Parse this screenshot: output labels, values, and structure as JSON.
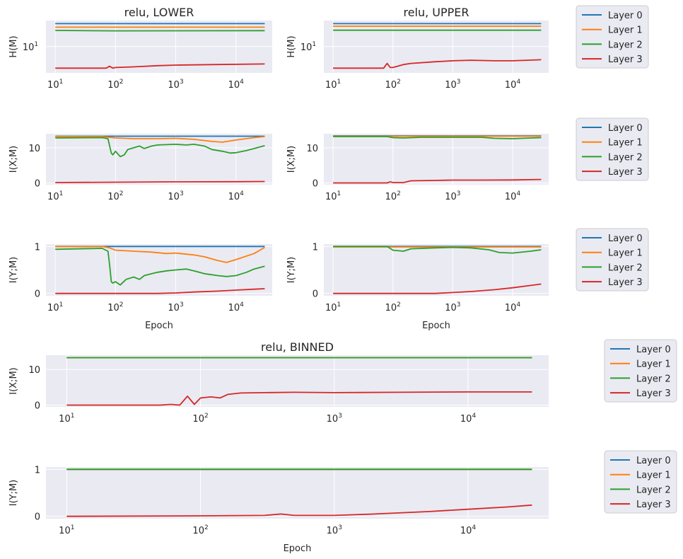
{
  "series_colors": {
    "Layer 0": "#1f77b4",
    "Layer 1": "#ff7f0e",
    "Layer 2": "#2ca02c",
    "Layer 3": "#d62728"
  },
  "legend_labels": [
    "Layer 0",
    "Layer 1",
    "Layer 2",
    "Layer 3"
  ],
  "chart_data": [
    {
      "id": "lower-h",
      "type": "line",
      "title": "relu, LOWER",
      "xlabel": "",
      "ylabel": "H(M)",
      "xscale": "log",
      "yscale": "log",
      "xlim": [
        7,
        40000
      ],
      "ylim": [
        4.5,
        22
      ],
      "xticks": [
        10,
        100,
        1000,
        10000
      ],
      "yticks": [
        10
      ],
      "legend": "right",
      "series": [
        {
          "name": "Layer 0",
          "x": [
            10,
            30000
          ],
          "y": [
            20,
            20
          ]
        },
        {
          "name": "Layer 1",
          "x": [
            10,
            30000
          ],
          "y": [
            18,
            18
          ]
        },
        {
          "name": "Layer 2",
          "x": [
            10,
            100,
            30000
          ],
          "y": [
            16.3,
            16.1,
            16.2
          ]
        },
        {
          "name": "Layer 3",
          "x": [
            10,
            70,
            80,
            90,
            100,
            200,
            500,
            1000,
            5000,
            30000
          ],
          "y": [
            5.2,
            5.2,
            5.5,
            5.2,
            5.3,
            5.4,
            5.6,
            5.7,
            5.8,
            5.9
          ]
        }
      ]
    },
    {
      "id": "upper-h",
      "type": "line",
      "title": "relu, UPPER",
      "xlabel": "",
      "ylabel": "H(M)",
      "xscale": "log",
      "yscale": "log",
      "xlim": [
        7,
        40000
      ],
      "ylim": [
        4.5,
        22
      ],
      "xticks": [
        10,
        100,
        1000,
        10000
      ],
      "yticks": [
        10
      ],
      "legend": "right",
      "series": [
        {
          "name": "Layer 0",
          "x": [
            10,
            30000
          ],
          "y": [
            20,
            20
          ]
        },
        {
          "name": "Layer 1",
          "x": [
            10,
            30000
          ],
          "y": [
            18.5,
            18.5
          ]
        },
        {
          "name": "Layer 2",
          "x": [
            10,
            30000
          ],
          "y": [
            16.4,
            16.4
          ]
        },
        {
          "name": "Layer 3",
          "x": [
            10,
            70,
            80,
            90,
            100,
            150,
            200,
            500,
            1000,
            2000,
            5000,
            10000,
            30000
          ],
          "y": [
            5.2,
            5.2,
            6.0,
            5.3,
            5.3,
            5.8,
            6.0,
            6.3,
            6.5,
            6.6,
            6.5,
            6.5,
            6.7
          ]
        }
      ]
    },
    {
      "id": "lower-ixm",
      "type": "line",
      "title": "",
      "xlabel": "",
      "ylabel": "I(X;M)",
      "xscale": "log",
      "yscale": "linear",
      "xlim": [
        7,
        40000
      ],
      "ylim": [
        -0.5,
        14
      ],
      "xticks": [
        10,
        100,
        1000,
        10000
      ],
      "yticks": [
        0,
        10
      ],
      "legend": "right",
      "series": [
        {
          "name": "Layer 0",
          "x": [
            10,
            30000
          ],
          "y": [
            13.3,
            13.3
          ]
        },
        {
          "name": "Layer 1",
          "x": [
            10,
            60,
            100,
            200,
            500,
            1000,
            2000,
            4000,
            6000,
            10000,
            20000,
            30000
          ],
          "y": [
            13.2,
            13.2,
            12.8,
            12.6,
            12.6,
            12.7,
            12.4,
            11.8,
            11.6,
            12.2,
            12.9,
            13.2
          ]
        },
        {
          "name": "Layer 2",
          "x": [
            10,
            60,
            75,
            80,
            85,
            90,
            100,
            120,
            140,
            160,
            200,
            250,
            300,
            400,
            500,
            700,
            1000,
            1500,
            2000,
            3000,
            4000,
            6000,
            8000,
            10000,
            15000,
            20000,
            30000
          ],
          "y": [
            12.8,
            12.9,
            12.6,
            10.5,
            8.5,
            8.0,
            9.0,
            7.5,
            8.0,
            9.5,
            10.0,
            10.5,
            9.8,
            10.5,
            10.8,
            10.9,
            11.0,
            10.8,
            11.0,
            10.5,
            9.5,
            9.0,
            8.5,
            8.6,
            9.2,
            9.8,
            10.6
          ]
        },
        {
          "name": "Layer 3",
          "x": [
            10,
            100,
            1000,
            10000,
            30000
          ],
          "y": [
            0.1,
            0.2,
            0.3,
            0.35,
            0.4
          ]
        }
      ]
    },
    {
      "id": "upper-ixm",
      "type": "line",
      "title": "",
      "xlabel": "",
      "ylabel": "I(X;M)",
      "xscale": "log",
      "yscale": "linear",
      "xlim": [
        7,
        40000
      ],
      "ylim": [
        -0.5,
        14
      ],
      "xticks": [
        10,
        100,
        1000,
        10000
      ],
      "yticks": [
        0,
        10
      ],
      "legend": "right",
      "series": [
        {
          "name": "Layer 0",
          "x": [
            10,
            30000
          ],
          "y": [
            13.4,
            13.4
          ]
        },
        {
          "name": "Layer 1",
          "x": [
            10,
            30000
          ],
          "y": [
            13.3,
            13.3
          ]
        },
        {
          "name": "Layer 2",
          "x": [
            10,
            80,
            100,
            150,
            300,
            1000,
            3000,
            5000,
            10000,
            20000,
            30000
          ],
          "y": [
            13.2,
            13.2,
            12.9,
            12.8,
            13.0,
            13.0,
            13.0,
            12.7,
            12.6,
            12.8,
            12.9
          ]
        },
        {
          "name": "Layer 3",
          "x": [
            10,
            80,
            90,
            100,
            150,
            200,
            500,
            1000,
            3000,
            10000,
            30000
          ],
          "y": [
            0,
            0,
            0.3,
            0.1,
            0.1,
            0.6,
            0.7,
            0.8,
            0.8,
            0.85,
            1.0
          ]
        }
      ]
    },
    {
      "id": "lower-iym",
      "type": "line",
      "title": "",
      "xlabel": "Epoch",
      "ylabel": "I(Y;M)",
      "xscale": "log",
      "yscale": "linear",
      "xlim": [
        7,
        40000
      ],
      "ylim": [
        -0.05,
        1.05
      ],
      "xticks": [
        10,
        100,
        1000,
        10000
      ],
      "yticks": [
        0,
        1
      ],
      "legend": "right",
      "series": [
        {
          "name": "Layer 0",
          "x": [
            10,
            30000
          ],
          "y": [
            1.0,
            1.0
          ]
        },
        {
          "name": "Layer 1",
          "x": [
            10,
            60,
            80,
            100,
            200,
            400,
            700,
            1000,
            2000,
            3000,
            5000,
            7000,
            10000,
            20000,
            30000
          ],
          "y": [
            1.0,
            1.0,
            0.97,
            0.92,
            0.9,
            0.88,
            0.85,
            0.86,
            0.82,
            0.78,
            0.7,
            0.66,
            0.72,
            0.85,
            0.98
          ]
        },
        {
          "name": "Layer 2",
          "x": [
            10,
            60,
            75,
            80,
            85,
            90,
            100,
            120,
            150,
            200,
            250,
            300,
            400,
            500,
            700,
            1000,
            1500,
            2000,
            3000,
            5000,
            7000,
            10000,
            15000,
            20000,
            30000
          ],
          "y": [
            0.94,
            0.96,
            0.9,
            0.6,
            0.25,
            0.22,
            0.25,
            0.18,
            0.3,
            0.35,
            0.3,
            0.38,
            0.42,
            0.45,
            0.48,
            0.5,
            0.52,
            0.48,
            0.42,
            0.38,
            0.36,
            0.38,
            0.45,
            0.52,
            0.58
          ]
        },
        {
          "name": "Layer 3",
          "x": [
            10,
            500,
            1000,
            2000,
            5000,
            10000,
            20000,
            30000
          ],
          "y": [
            0.0,
            0.0,
            0.01,
            0.03,
            0.05,
            0.07,
            0.09,
            0.1
          ]
        }
      ]
    },
    {
      "id": "upper-iym",
      "type": "line",
      "title": "",
      "xlabel": "Epoch",
      "ylabel": "I(Y;M)",
      "xscale": "log",
      "yscale": "linear",
      "xlim": [
        7,
        40000
      ],
      "ylim": [
        -0.05,
        1.05
      ],
      "xticks": [
        10,
        100,
        1000,
        10000
      ],
      "yticks": [
        0,
        1
      ],
      "legend": "right",
      "series": [
        {
          "name": "Layer 0",
          "x": [
            10,
            30000
          ],
          "y": [
            1.0,
            1.0
          ]
        },
        {
          "name": "Layer 1",
          "x": [
            10,
            30000
          ],
          "y": [
            0.99,
            0.99
          ]
        },
        {
          "name": "Layer 2",
          "x": [
            10,
            80,
            100,
            150,
            200,
            500,
            1000,
            2000,
            4000,
            6000,
            10000,
            20000,
            30000
          ],
          "y": [
            1.0,
            1.0,
            0.92,
            0.9,
            0.95,
            0.97,
            0.98,
            0.97,
            0.93,
            0.87,
            0.86,
            0.9,
            0.93
          ]
        },
        {
          "name": "Layer 3",
          "x": [
            10,
            500,
            1000,
            2000,
            5000,
            10000,
            20000,
            30000
          ],
          "y": [
            0.0,
            0.0,
            0.02,
            0.04,
            0.08,
            0.12,
            0.17,
            0.2
          ]
        }
      ]
    },
    {
      "id": "binned-ixm",
      "type": "line",
      "title": "relu, BINNED",
      "xlabel": "",
      "ylabel": "I(X;M)",
      "xscale": "log",
      "yscale": "linear",
      "xlim": [
        7,
        40000
      ],
      "ylim": [
        -0.5,
        14
      ],
      "xticks": [
        10,
        100,
        1000,
        10000
      ],
      "yticks": [
        0,
        10
      ],
      "legend": "right",
      "series": [
        {
          "name": "Layer 0",
          "x": [
            10,
            30000
          ],
          "y": [
            13.3,
            13.3
          ]
        },
        {
          "name": "Layer 1",
          "x": [
            10,
            30000
          ],
          "y": [
            13.3,
            13.3
          ]
        },
        {
          "name": "Layer 2",
          "x": [
            10,
            30000
          ],
          "y": [
            13.3,
            13.3
          ]
        },
        {
          "name": "Layer 3",
          "x": [
            10,
            50,
            60,
            70,
            80,
            90,
            100,
            120,
            140,
            160,
            200,
            300,
            500,
            1000,
            3000,
            10000,
            30000
          ],
          "y": [
            0.0,
            0.0,
            0.2,
            0.0,
            2.5,
            0.2,
            2.0,
            2.3,
            2.0,
            3.0,
            3.4,
            3.5,
            3.6,
            3.5,
            3.6,
            3.7,
            3.7
          ]
        }
      ]
    },
    {
      "id": "binned-iym",
      "type": "line",
      "title": "",
      "xlabel": "Epoch",
      "ylabel": "I(Y;M)",
      "xscale": "log",
      "yscale": "linear",
      "xlim": [
        7,
        40000
      ],
      "ylim": [
        -0.05,
        1.05
      ],
      "xticks": [
        10,
        100,
        1000,
        10000
      ],
      "yticks": [
        0,
        1
      ],
      "legend": "right",
      "series": [
        {
          "name": "Layer 0",
          "x": [
            10,
            30000
          ],
          "y": [
            1.0,
            1.0
          ]
        },
        {
          "name": "Layer 1",
          "x": [
            10,
            30000
          ],
          "y": [
            1.0,
            1.0
          ]
        },
        {
          "name": "Layer 2",
          "x": [
            10,
            30000
          ],
          "y": [
            1.0,
            1.0
          ]
        },
        {
          "name": "Layer 3",
          "x": [
            10,
            100,
            300,
            400,
            500,
            1000,
            2000,
            5000,
            10000,
            20000,
            30000
          ],
          "y": [
            0.0,
            0.01,
            0.02,
            0.05,
            0.02,
            0.02,
            0.05,
            0.1,
            0.15,
            0.2,
            0.24
          ]
        }
      ]
    }
  ]
}
